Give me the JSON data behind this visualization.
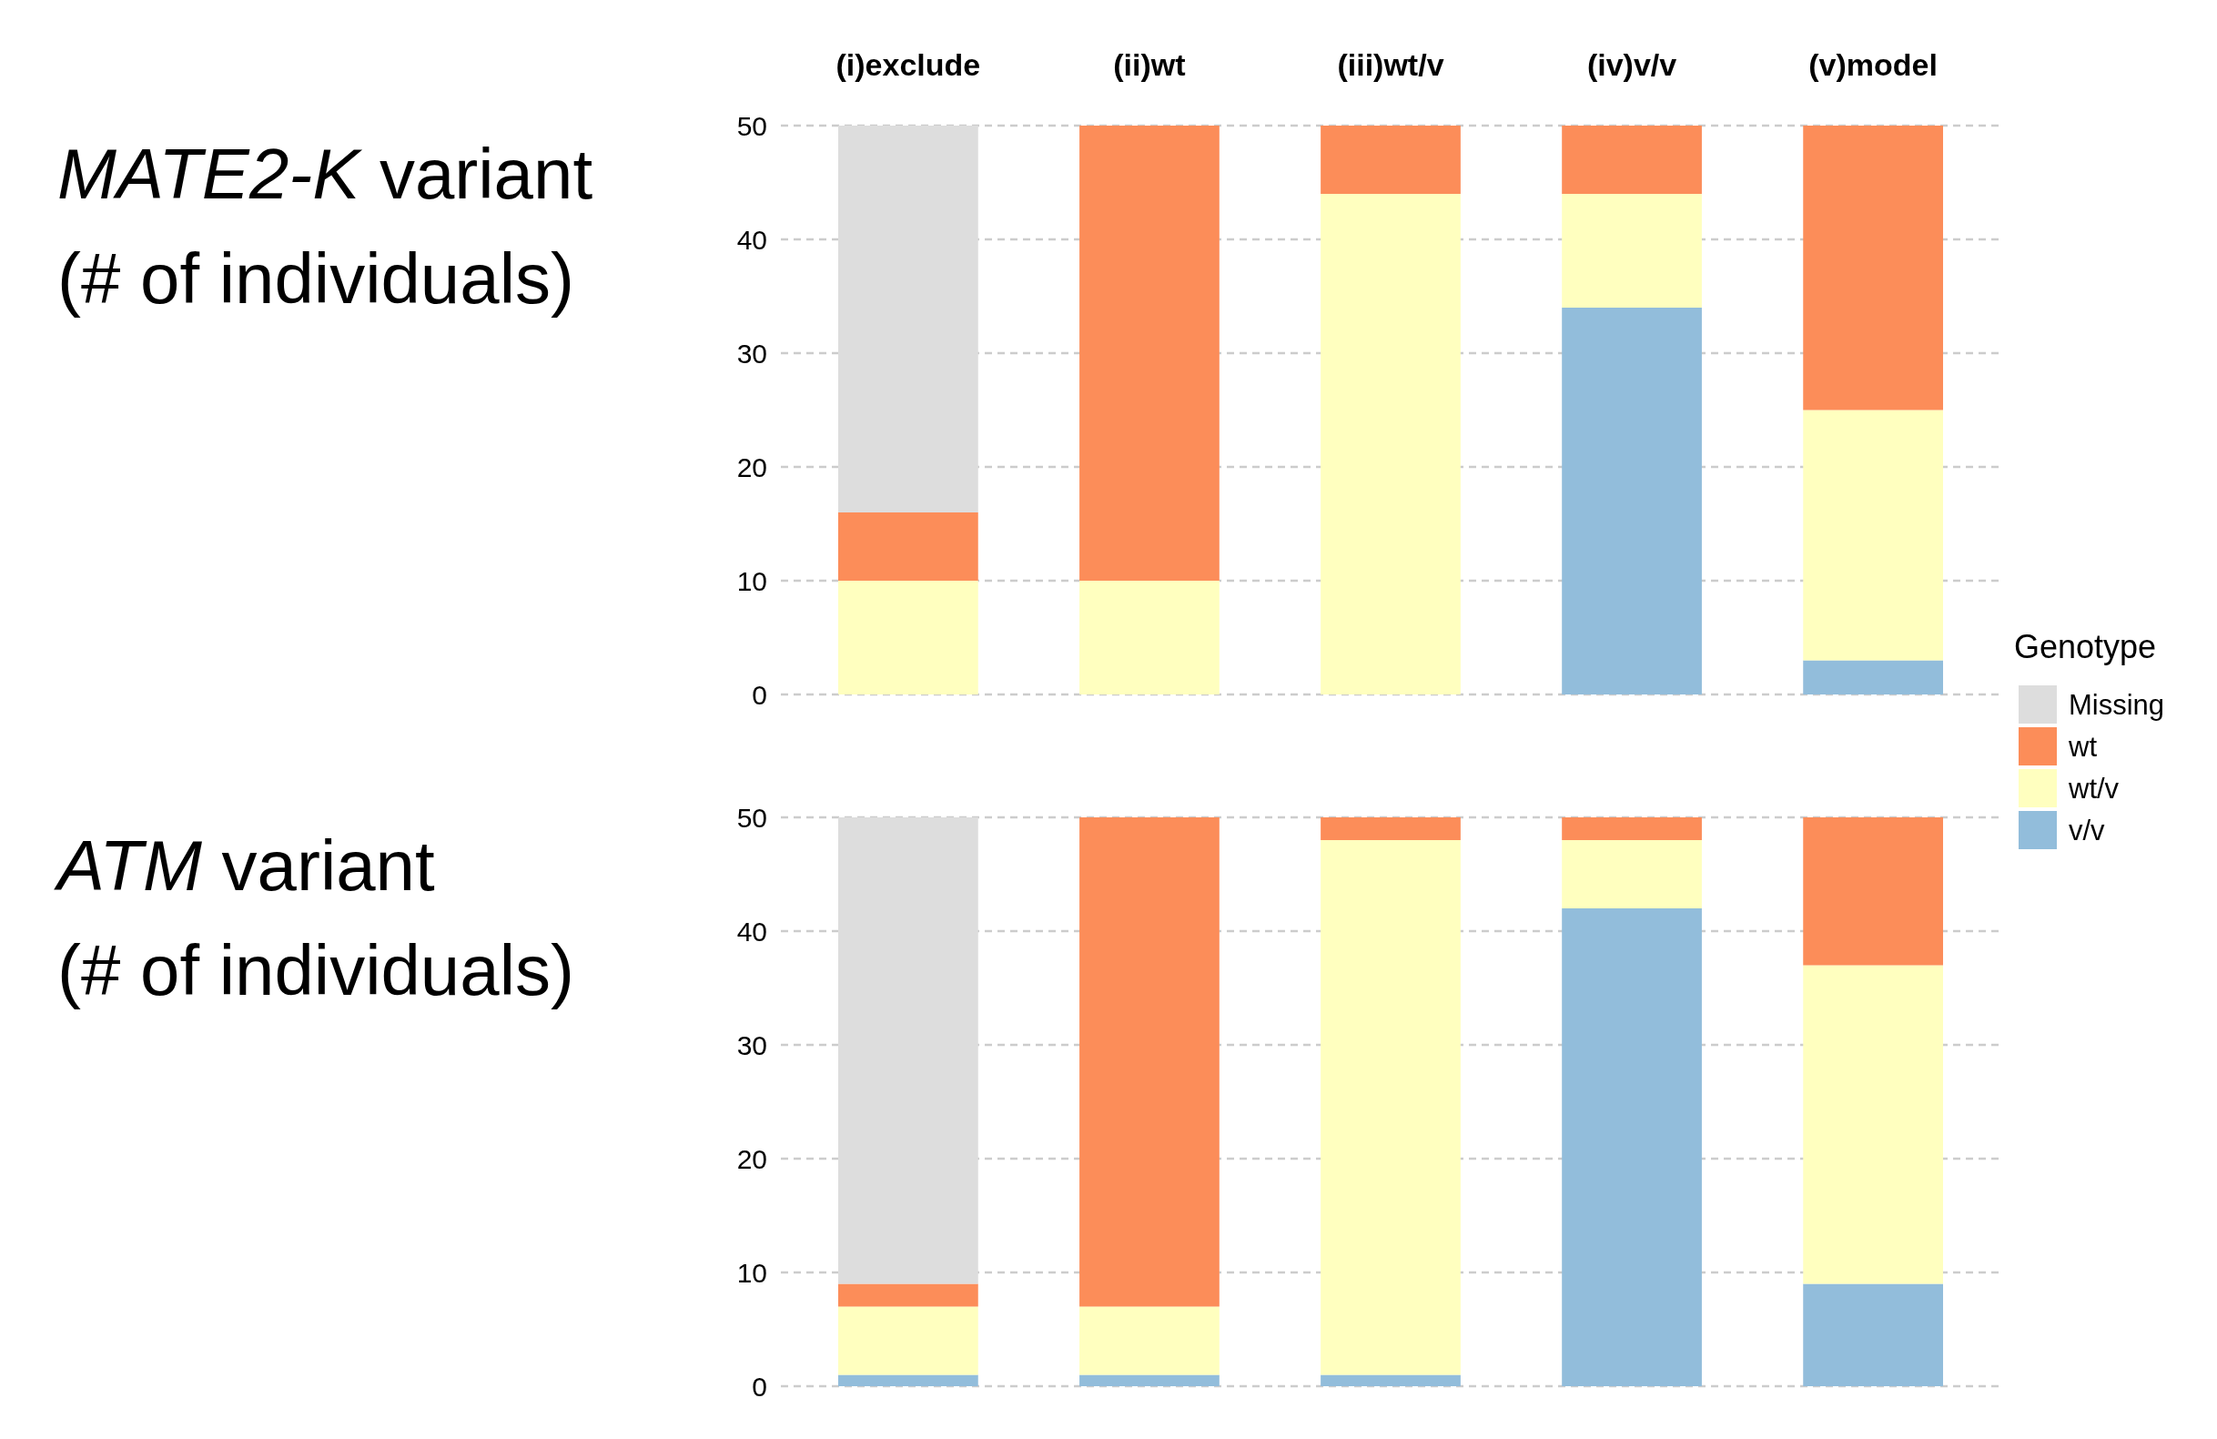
{
  "chart_data": [
    {
      "type": "bar",
      "ylabel": "MATE2-K variant (# of individuals)",
      "categories": [
        "(i)exclude",
        "(ii)wt",
        "(iii)wt/v",
        "(iv)v/v",
        "(v)model"
      ],
      "stacked": true,
      "ylim": [
        0,
        50
      ],
      "yticks": [
        0,
        10,
        20,
        30,
        40,
        50
      ],
      "grid": "y",
      "legend": "right",
      "legend_title": "Genotype",
      "series": [
        {
          "name": "v/v",
          "color": "#92bddb",
          "values": [
            0,
            0,
            0,
            34,
            3
          ]
        },
        {
          "name": "wt/v",
          "color": "#ffffbf",
          "values": [
            10,
            10,
            44,
            10,
            22
          ]
        },
        {
          "name": "wt",
          "color": "#fc8d59",
          "values": [
            6,
            40,
            6,
            6,
            25
          ]
        },
        {
          "name": "Missing",
          "color": "#dddddd",
          "values": [
            34,
            0,
            0,
            0,
            0
          ]
        }
      ]
    },
    {
      "type": "bar",
      "ylabel": "ATM variant (# of individuals)",
      "categories": [
        null,
        null,
        null,
        null,
        null
      ],
      "stacked": true,
      "ylim": [
        0,
        50
      ],
      "yticks": [
        0,
        10,
        20,
        30,
        40,
        50
      ],
      "grid": "y",
      "tick_labels": "y",
      "series": [
        {
          "color": "#92bddb",
          "values": [
            1,
            1,
            1,
            42,
            9
          ]
        },
        {
          "color": "#ffffbf",
          "values": [
            6,
            6,
            47,
            6,
            28
          ]
        },
        {
          "color": "#fc8d59",
          "values": [
            2,
            43,
            2,
            2,
            13
          ]
        },
        {
          "color": "#dddddd",
          "values": [
            41,
            0,
            0,
            0,
            0
          ]
        }
      ]
    }
  ]
}
